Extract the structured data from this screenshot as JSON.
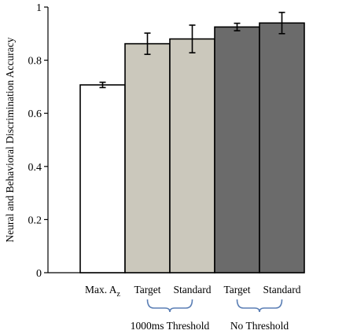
{
  "chart_data": {
    "type": "bar",
    "ylabel": "Neural and Behavioral Discrimination Accuracy",
    "ylim": [
      0,
      1
    ],
    "yticks": [
      0,
      0.2,
      0.4,
      0.6,
      0.8,
      1
    ],
    "ytick_labels": [
      "0",
      "0.2",
      "0.4",
      "0.6",
      "0.8",
      "1"
    ],
    "grid": false,
    "categories": [
      {
        "label": "Max. A",
        "subscript": "z"
      },
      {
        "label": "Target",
        "subscript": ""
      },
      {
        "label": "Standard",
        "subscript": ""
      },
      {
        "label": "Target",
        "subscript": ""
      },
      {
        "label": "Standard",
        "subscript": ""
      }
    ],
    "values": [
      0.707,
      0.862,
      0.88,
      0.925,
      0.94
    ],
    "errors": [
      0.01,
      0.04,
      0.052,
      0.014,
      0.04
    ],
    "colors": [
      "#ffffff",
      "#cbc8bc",
      "#cbc8bc",
      "#6b6b6b",
      "#6b6b6b"
    ],
    "groups": [
      {
        "label": "1000ms Threshold",
        "from": 1,
        "to": 2
      },
      {
        "label": "No Threshold",
        "from": 3,
        "to": 4
      }
    ],
    "bracket_color": "#5b7fb5"
  }
}
